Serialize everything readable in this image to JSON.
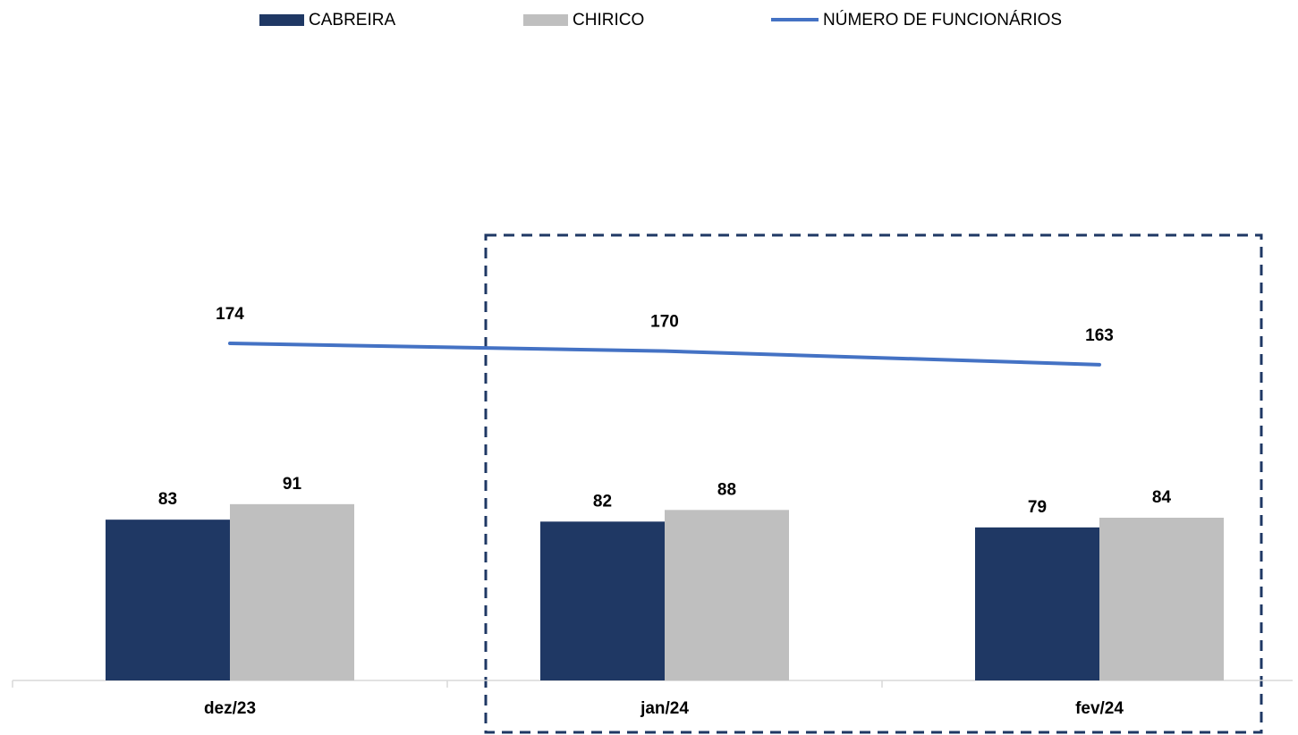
{
  "chart_data": {
    "type": "bar",
    "categories": [
      "dez/23",
      "jan/24",
      "fev/24"
    ],
    "series": [
      {
        "name": "CABREIRA",
        "type": "bar",
        "color": "#1f3864",
        "values": [
          83,
          82,
          79
        ]
      },
      {
        "name": "CHIRICO",
        "type": "bar",
        "color": "#bfbfbf",
        "values": [
          91,
          88,
          84
        ]
      },
      {
        "name": "NÚMERO DE FUNCIONÁRIOS",
        "type": "line",
        "color": "#4472c4",
        "values": [
          174,
          170,
          163
        ]
      }
    ],
    "ylim": [
      0,
      300
    ],
    "legend": "top",
    "grid": false
  }
}
